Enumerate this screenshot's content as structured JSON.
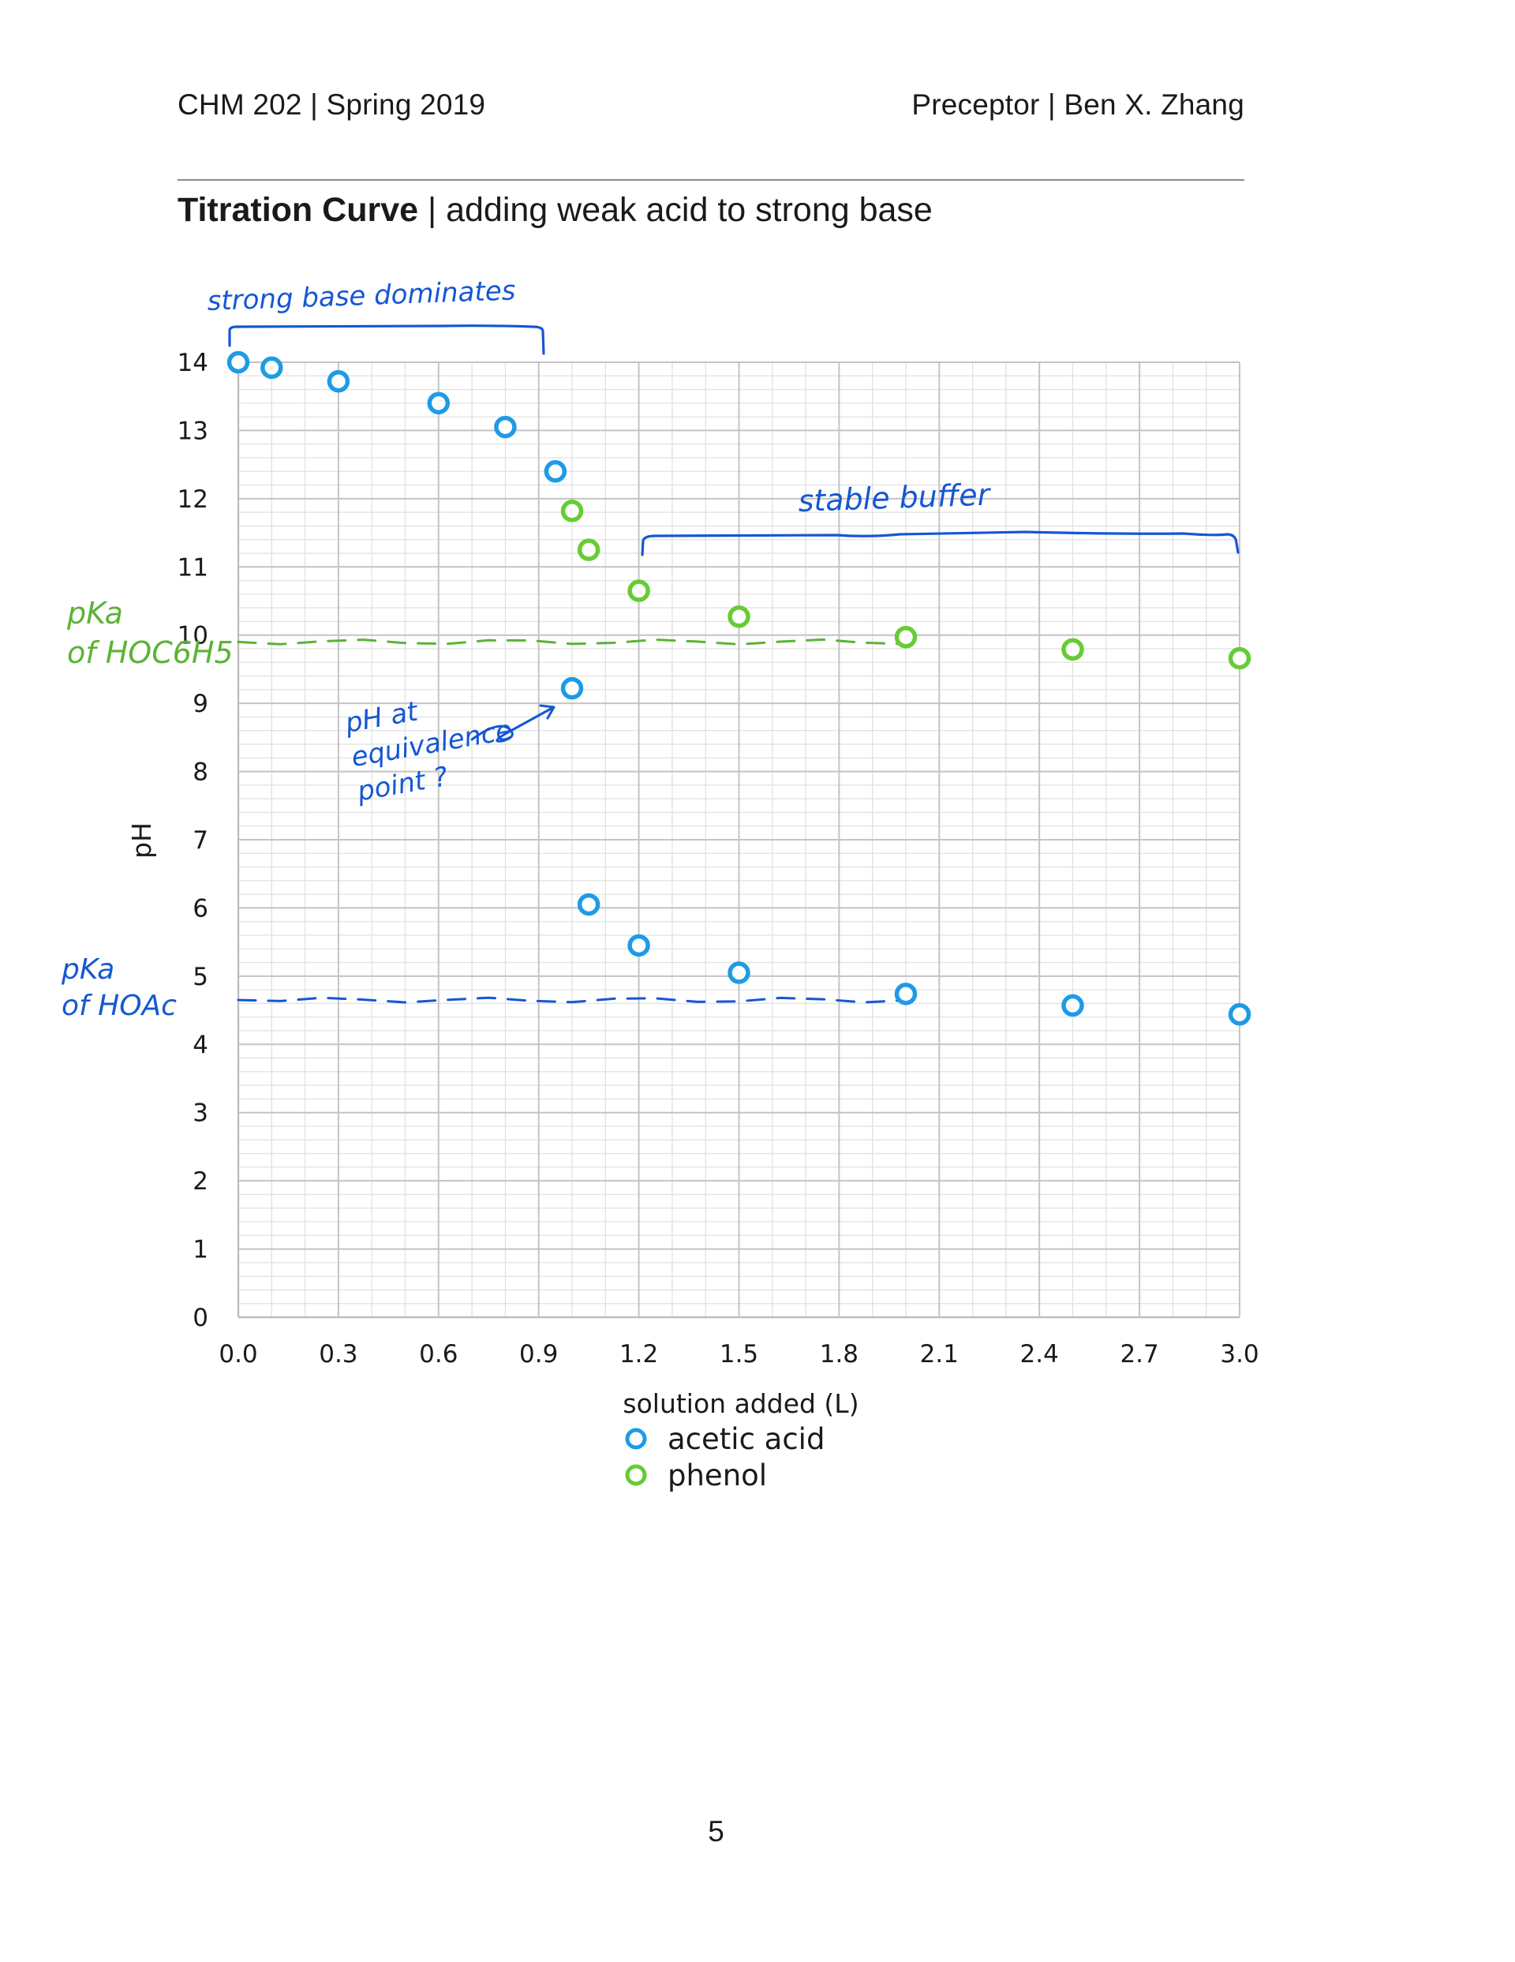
{
  "header": {
    "left": "CHM 202 | Spring 2019",
    "right": "Preceptor | Ben X. Zhang"
  },
  "title": {
    "bold": "Titration Curve",
    "rest": " | adding weak acid to strong base"
  },
  "page_number": "5",
  "chart_data": {
    "type": "scatter",
    "xlabel": "solution added (L)",
    "ylabel": "pH",
    "xlim": [
      0,
      3.0
    ],
    "ylim": [
      0,
      14
    ],
    "x_ticks": [
      "0.0",
      "0.3",
      "0.6",
      "0.9",
      "1.2",
      "1.5",
      "1.8",
      "2.1",
      "2.4",
      "2.7",
      "3.0"
    ],
    "y_ticks": [
      "0",
      "1",
      "2",
      "3",
      "4",
      "5",
      "6",
      "7",
      "8",
      "9",
      "10",
      "11",
      "12",
      "13",
      "14"
    ],
    "grid": true,
    "legend_position": "bottom",
    "series": [
      {
        "name": "acetic acid",
        "color": "#1e9be6",
        "points": [
          [
            0.0,
            14.0
          ],
          [
            0.1,
            13.92
          ],
          [
            0.3,
            13.72
          ],
          [
            0.6,
            13.4
          ],
          [
            0.8,
            13.05
          ],
          [
            0.95,
            12.4
          ],
          [
            1.0,
            9.22
          ],
          [
            1.05,
            6.05
          ],
          [
            1.2,
            5.45
          ],
          [
            1.5,
            5.05
          ],
          [
            2.0,
            4.74
          ],
          [
            2.5,
            4.57
          ],
          [
            3.0,
            4.44
          ]
        ]
      },
      {
        "name": "phenol",
        "color": "#66cc33",
        "points": [
          [
            1.0,
            11.82
          ],
          [
            1.05,
            11.25
          ],
          [
            1.2,
            10.65
          ],
          [
            1.5,
            10.27
          ],
          [
            2.0,
            9.97
          ],
          [
            2.5,
            9.79
          ],
          [
            3.0,
            9.66
          ]
        ]
      }
    ],
    "annotations": [
      {
        "text": "strong base dominates",
        "color": "#1557d4"
      },
      {
        "text": "stable buffer",
        "color": "#1557d4"
      },
      {
        "text": "pH at equivalence point ?",
        "lines": [
          "pH at",
          "equivalence",
          "point ?"
        ],
        "color": "#1557d4"
      },
      {
        "text": "pKa of HOC6H5",
        "lines": [
          "pKa",
          "of HOC6H5"
        ],
        "color": "#5bb336"
      },
      {
        "text": "pKa of HOAc",
        "lines": [
          "pKa",
          "of HOAc"
        ],
        "color": "#1557d4"
      }
    ],
    "reference_lines": [
      {
        "y": 9.9,
        "x_range": [
          0,
          2.0
        ],
        "color": "#5bb336",
        "style": "dashed"
      },
      {
        "y": 4.65,
        "x_range": [
          0,
          2.0
        ],
        "color": "#1557d4",
        "style": "dashed"
      }
    ]
  }
}
